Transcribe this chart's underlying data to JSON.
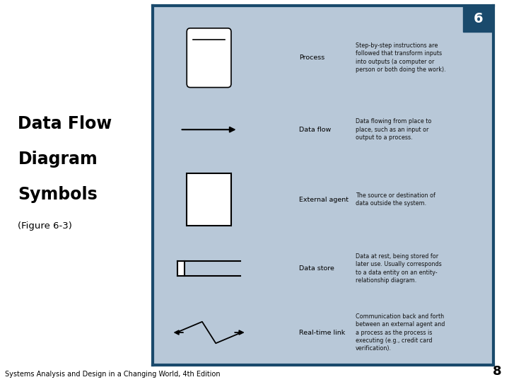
{
  "bg_color": "#ffffff",
  "panel_color": "#b8c8d8",
  "panel_border_color": "#1a4a6c",
  "corner_tab_color": "#1a4a6c",
  "title_lines": [
    "Data Flow",
    "Diagram",
    "Symbols"
  ],
  "subtitle": "(Figure 6-3)",
  "footer": "Systems Analysis and Design in a Changing World, 4th Edition",
  "page_number": "8",
  "slide_number": "6",
  "symbols": [
    {
      "name": "Process",
      "label": "Process",
      "desc": "Step-by-step instructions are\nfollowed that transform inputs\ninto outputs (a computer or\nperson or both doing the work)."
    },
    {
      "name": "Data flow",
      "label": "Data flow",
      "desc": "Data flowing from place to\nplace, such as an input or\noutput to a process."
    },
    {
      "name": "External agent",
      "label": "External agent",
      "desc": "The source or destination of\ndata outside the system."
    },
    {
      "name": "Data store",
      "label": "Data store",
      "desc": "Data at rest, being stored for\nlater use. Usually corresponds\nto a data entity on an entity-\nrelationship diagram."
    },
    {
      "name": "Real-time link",
      "label": "Real-time link",
      "desc": "Communication back and forth\nbetween an external agent and\na process as the process is\nexecuting (e.g., credit card\nverification)."
    }
  ]
}
